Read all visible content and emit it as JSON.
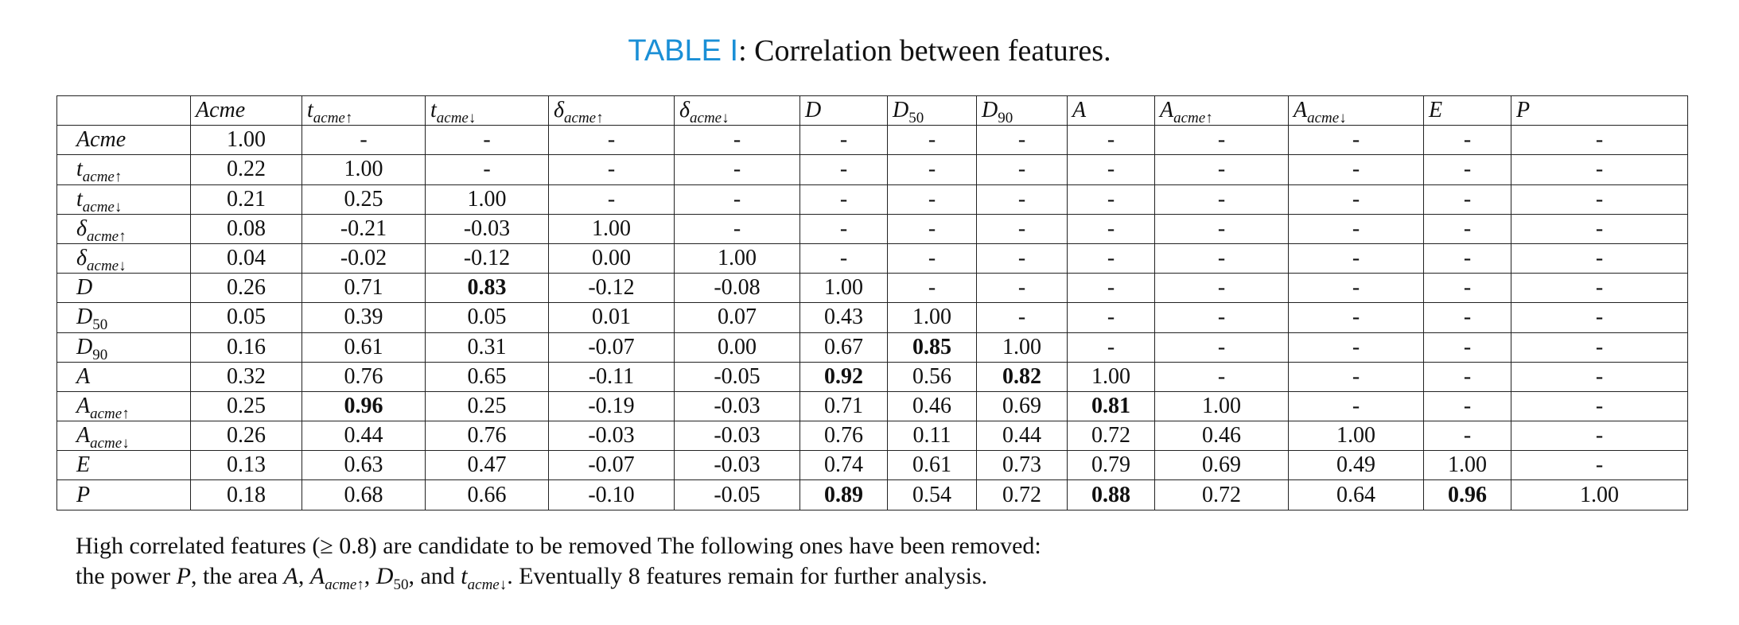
{
  "caption": {
    "label": "TABLE I",
    "text": ": Correlation between features."
  },
  "table": {
    "columns": [
      "",
      "Acme",
      "t_acme↑",
      "t_acme↓",
      "δ_acme↑",
      "δ_acme↓",
      "D",
      "D_50",
      "D_90",
      "A",
      "A_acme↑",
      "A_acme↓",
      "E",
      "P"
    ],
    "rows": [
      {
        "header": "Acme",
        "cells": [
          "1.00",
          "-",
          "-",
          "-",
          "-",
          "-",
          "-",
          "-",
          "-",
          "-",
          "-",
          "-",
          "-"
        ]
      },
      {
        "header": "t_acme↑",
        "cells": [
          "0.22",
          "1.00",
          "-",
          "-",
          "-",
          "-",
          "-",
          "-",
          "-",
          "-",
          "-",
          "-",
          "-"
        ]
      },
      {
        "header": "t_acme↓",
        "cells": [
          "0.21",
          "0.25",
          "1.00",
          "-",
          "-",
          "-",
          "-",
          "-",
          "-",
          "-",
          "-",
          "-",
          "-"
        ]
      },
      {
        "header": "δ_acme↑",
        "cells": [
          "0.08",
          "-0.21",
          "-0.03",
          "1.00",
          "-",
          "-",
          "-",
          "-",
          "-",
          "-",
          "-",
          "-",
          "-"
        ]
      },
      {
        "header": "δ_acme↓",
        "cells": [
          "0.04",
          "-0.02",
          "-0.12",
          "0.00",
          "1.00",
          "-",
          "-",
          "-",
          "-",
          "-",
          "-",
          "-",
          "-"
        ]
      },
      {
        "header": "D",
        "cells": [
          "0.26",
          "0.71",
          "0.83",
          "-0.12",
          "-0.08",
          "1.00",
          "-",
          "-",
          "-",
          "-",
          "-",
          "-",
          "-"
        ]
      },
      {
        "header": "D_50",
        "cells": [
          "0.05",
          "0.39",
          "0.05",
          "0.01",
          "0.07",
          "0.43",
          "1.00",
          "-",
          "-",
          "-",
          "-",
          "-",
          "-"
        ]
      },
      {
        "header": "D_90",
        "cells": [
          "0.16",
          "0.61",
          "0.31",
          "-0.07",
          "0.00",
          "0.67",
          "0.85",
          "1.00",
          "-",
          "-",
          "-",
          "-",
          "-"
        ]
      },
      {
        "header": "A",
        "cells": [
          "0.32",
          "0.76",
          "0.65",
          "-0.11",
          "-0.05",
          "0.92",
          "0.56",
          "0.82",
          "1.00",
          "-",
          "-",
          "-",
          "-"
        ]
      },
      {
        "header": "A_acme↑",
        "cells": [
          "0.25",
          "0.96",
          "0.25",
          "-0.19",
          "-0.03",
          "0.71",
          "0.46",
          "0.69",
          "0.81",
          "1.00",
          "-",
          "-",
          "-"
        ]
      },
      {
        "header": "A_acme↓",
        "cells": [
          "0.26",
          "0.44",
          "0.76",
          "-0.03",
          "-0.03",
          "0.76",
          "0.11",
          "0.44",
          "0.72",
          "0.46",
          "1.00",
          "-",
          "-"
        ]
      },
      {
        "header": "E",
        "cells": [
          "0.13",
          "0.63",
          "0.47",
          "-0.07",
          "-0.03",
          "0.74",
          "0.61",
          "0.73",
          "0.79",
          "0.69",
          "0.49",
          "1.00",
          "-"
        ]
      },
      {
        "header": "P",
        "cells": [
          "0.18",
          "0.68",
          "0.66",
          "-0.10",
          "-0.05",
          "0.89",
          "0.54",
          "0.72",
          "0.88",
          "0.72",
          "0.64",
          "0.96",
          "1.00"
        ]
      }
    ],
    "bold_cells": [
      "D|t_acme↓",
      "D_90|D_50",
      "A|D",
      "A|D_90",
      "A_acme↑|t_acme↑",
      "A_acme↑|A",
      "P|D",
      "P|A",
      "P|E"
    ]
  },
  "footnote": {
    "line1": "High correlated features (≥ 0.8) are candidate to be removed The following ones have been removed:",
    "line2": "the power P, the area A, A_acme↑, D_50, and t_acme↓. Eventually 8 features remain for further analysis."
  }
}
